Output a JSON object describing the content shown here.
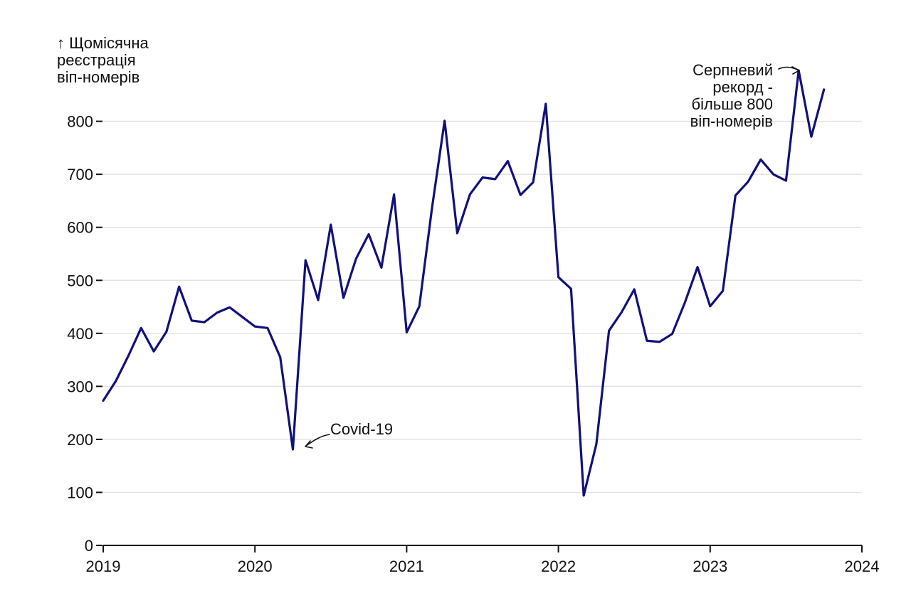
{
  "chart_data": {
    "type": "line",
    "title": "",
    "xlabel": "",
    "ylabel_lines": [
      "↑ Щомісячна",
      "реєстрація",
      "віп-номерів"
    ],
    "ylim": [
      0,
      880
    ],
    "yticks": [
      0,
      100,
      200,
      300,
      400,
      500,
      600,
      700,
      800
    ],
    "ytick_labels": [
      "0",
      "100",
      "200",
      "300",
      "400",
      "500",
      "600",
      "700",
      "800"
    ],
    "xlim": [
      2019,
      2024
    ],
    "xticks": [
      2019,
      2020,
      2021,
      2022,
      2023,
      2024
    ],
    "xtick_labels": [
      "2019",
      "2020",
      "2021",
      "2022",
      "2023",
      "2024"
    ],
    "grid": true,
    "series_color": "#11117a",
    "x": [
      "2019-01",
      "2019-02",
      "2019-03",
      "2019-04",
      "2019-05",
      "2019-06",
      "2019-07",
      "2019-08",
      "2019-09",
      "2019-10",
      "2019-11",
      "2019-12",
      "2020-01",
      "2020-02",
      "2020-03",
      "2020-04",
      "2020-05",
      "2020-06",
      "2020-07",
      "2020-08",
      "2020-09",
      "2020-10",
      "2020-11",
      "2020-12",
      "2021-01",
      "2021-02",
      "2021-03",
      "2021-04",
      "2021-05",
      "2021-06",
      "2021-07",
      "2021-08",
      "2021-09",
      "2021-10",
      "2021-11",
      "2021-12",
      "2022-01",
      "2022-02",
      "2022-03",
      "2022-04",
      "2022-05",
      "2022-06",
      "2022-07",
      "2022-08",
      "2022-09",
      "2022-10",
      "2022-11",
      "2022-12",
      "2023-01",
      "2023-02",
      "2023-03",
      "2023-04",
      "2023-05",
      "2023-06",
      "2023-07",
      "2023-08",
      "2023-09",
      "2023-10"
    ],
    "values": [
      273,
      310,
      358,
      410,
      366,
      403,
      488,
      424,
      421,
      439,
      449,
      431,
      413,
      410,
      355,
      181,
      538,
      463,
      605,
      467,
      541,
      587,
      524,
      662,
      402,
      451,
      636,
      801,
      589,
      662,
      694,
      691,
      725,
      661,
      685,
      833,
      506,
      484,
      94,
      191,
      405,
      440,
      483,
      386,
      384,
      399,
      458,
      525,
      451,
      480,
      660,
      686,
      728,
      700,
      688,
      896,
      771,
      860
    ],
    "annotations": [
      {
        "text": "Covid-19",
        "x": "2020-04",
        "y": 181
      },
      {
        "lines": [
          "Серпневий",
          "рекорд -",
          "більше 800",
          "віп-номерів"
        ],
        "x": "2023-08",
        "y": 896
      }
    ]
  }
}
